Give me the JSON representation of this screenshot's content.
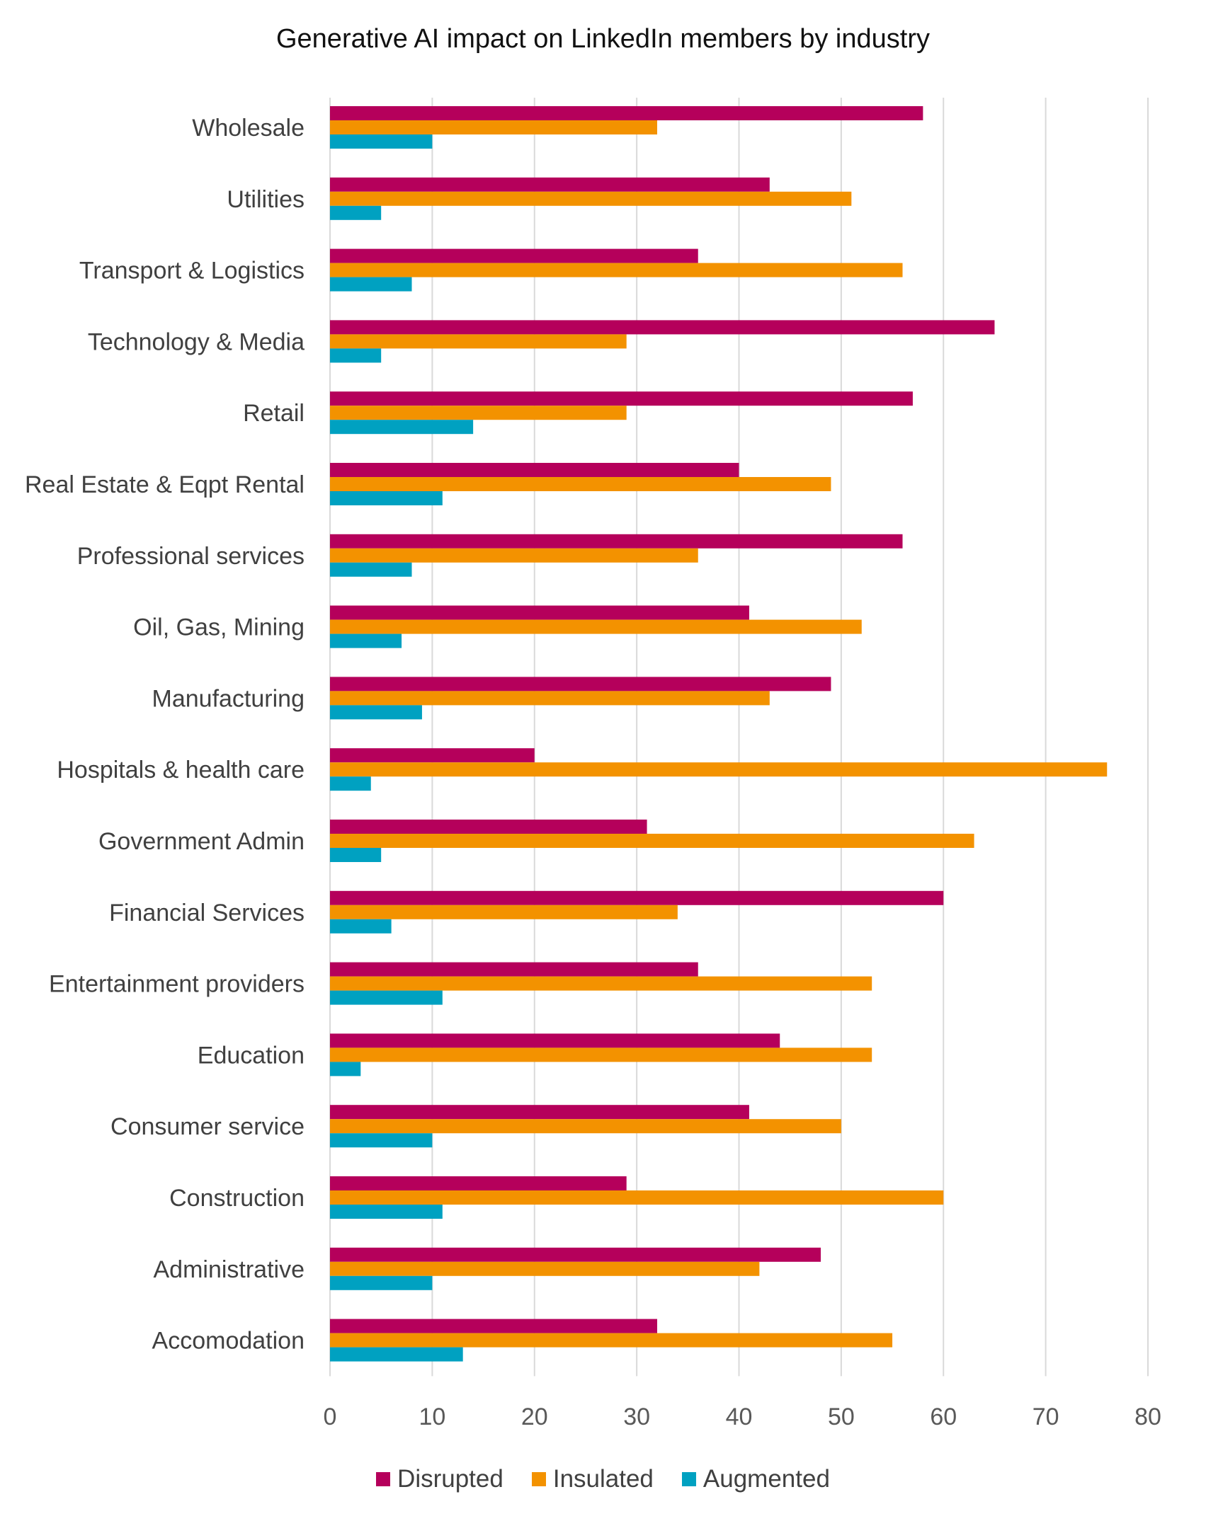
{
  "chart_data": {
    "type": "bar",
    "orientation": "horizontal",
    "title": "Generative AI impact on LinkedIn members by industry",
    "xlabel": "",
    "ylabel": "",
    "xlim": [
      0,
      80
    ],
    "x_ticks": [
      0,
      10,
      20,
      30,
      40,
      50,
      60,
      70,
      80
    ],
    "grid": "vertical",
    "legend_position": "bottom",
    "categories": [
      "Wholesale",
      "Utilities",
      "Transport & Logistics",
      "Technology & Media",
      "Retail",
      "Real Estate & Eqpt Rental",
      "Professional services",
      "Oil, Gas, Mining",
      "Manufacturing",
      "Hospitals & health care",
      "Government Admin",
      "Financial Services",
      "Entertainment providers",
      "Education",
      "Consumer service",
      "Construction",
      "Administrative",
      "Accomodation"
    ],
    "series": [
      {
        "name": "Disrupted",
        "color": "#B5005B",
        "values": [
          58,
          43,
          36,
          65,
          57,
          40,
          56,
          41,
          49,
          20,
          31,
          60,
          36,
          44,
          41,
          29,
          48,
          32
        ]
      },
      {
        "name": "Insulated",
        "color": "#F39200",
        "values": [
          32,
          51,
          56,
          29,
          29,
          49,
          36,
          52,
          43,
          76,
          63,
          34,
          53,
          53,
          50,
          60,
          42,
          55
        ]
      },
      {
        "name": "Augmented",
        "color": "#00A1C1",
        "values": [
          10,
          5,
          8,
          5,
          14,
          11,
          8,
          7,
          9,
          4,
          5,
          6,
          11,
          3,
          10,
          11,
          10,
          13
        ]
      }
    ]
  }
}
